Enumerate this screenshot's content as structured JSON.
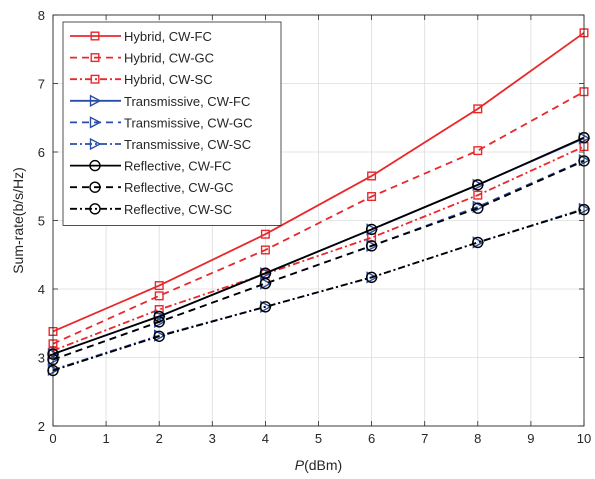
{
  "chart_data": {
    "type": "line",
    "xlabel": "P(dBm)",
    "ylabel": "Sum-rate(b/s/Hz)",
    "xlim": [
      0,
      10
    ],
    "ylim": [
      2,
      8
    ],
    "xticks": [
      0,
      1,
      2,
      3,
      4,
      5,
      6,
      7,
      8,
      9,
      10
    ],
    "yticks": [
      2,
      3,
      4,
      5,
      6,
      7,
      8
    ],
    "grid": true,
    "legend_position": "top-left",
    "x": [
      0,
      2,
      4,
      6,
      8,
      10
    ],
    "series": [
      {
        "name": "Hybrid, CW-FC",
        "values": [
          3.38,
          4.05,
          4.8,
          5.65,
          6.63,
          7.74
        ],
        "color": "#e8282b",
        "dash": "solid",
        "marker": "square"
      },
      {
        "name": "Hybrid, CW-GC",
        "values": [
          3.2,
          3.9,
          4.57,
          5.35,
          6.02,
          6.88
        ],
        "color": "#e8282b",
        "dash": "dashed",
        "marker": "square"
      },
      {
        "name": "Hybrid, CW-SC",
        "values": [
          3.1,
          3.7,
          4.22,
          4.75,
          5.37,
          6.08
        ],
        "color": "#e8282b",
        "dash": "dashdot",
        "marker": "square"
      },
      {
        "name": "Transmissive, CW-FC",
        "values": [
          3.05,
          3.6,
          4.23,
          4.87,
          5.52,
          6.2
        ],
        "color": "#2a4ea6",
        "dash": "solid",
        "marker": "triangle-right"
      },
      {
        "name": "Transmissive, CW-GC",
        "values": [
          2.97,
          3.52,
          4.08,
          4.63,
          5.2,
          5.88
        ],
        "color": "#2a4ea6",
        "dash": "dashed",
        "marker": "triangle-right"
      },
      {
        "name": "Transmissive, CW-SC",
        "values": [
          2.82,
          3.32,
          3.74,
          4.17,
          4.68,
          5.17
        ],
        "color": "#2a4ea6",
        "dash": "dashdot",
        "marker": "triangle-right"
      },
      {
        "name": "Reflective, CW-FC",
        "values": [
          3.05,
          3.6,
          4.23,
          4.87,
          5.52,
          6.21
        ],
        "color": "#000000",
        "dash": "solid",
        "marker": "circle"
      },
      {
        "name": "Reflective, CW-GC",
        "values": [
          2.97,
          3.52,
          4.08,
          4.63,
          5.18,
          5.87
        ],
        "color": "#000000",
        "dash": "dashed",
        "marker": "circle"
      },
      {
        "name": "Reflective, CW-SC",
        "values": [
          2.81,
          3.31,
          3.74,
          4.17,
          4.68,
          5.16
        ],
        "color": "#000000",
        "dash": "dashdot",
        "marker": "circle"
      }
    ]
  }
}
